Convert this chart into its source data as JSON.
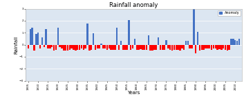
{
  "title": "Rainfall anomaly",
  "xlabel": "Years",
  "ylabel": "Rainfall",
  "ylim": [
    -3,
    3
  ],
  "yticks": [
    -3,
    -2,
    -1,
    0,
    1,
    2,
    3
  ],
  "legend_label": "Anomaly",
  "bar_color_pos": "#4472C4",
  "bar_color_neg": "#FF0000",
  "background_color": "#DCE6F1",
  "years": [
    1905,
    1906,
    1907,
    1908,
    1909,
    1910,
    1911,
    1912,
    1913,
    1914,
    1915,
    1916,
    1917,
    1918,
    1919,
    1920,
    1921,
    1922,
    1923,
    1924,
    1925,
    1926,
    1927,
    1928,
    1929,
    1930,
    1931,
    1932,
    1933,
    1934,
    1935,
    1936,
    1937,
    1938,
    1939,
    1940,
    1941,
    1942,
    1943,
    1944,
    1945,
    1946,
    1947,
    1948,
    1949,
    1950,
    1951,
    1952,
    1953,
    1954,
    1955,
    1956,
    1957,
    1958,
    1959,
    1960,
    1961,
    1962,
    1963,
    1964,
    1965,
    1966,
    1967,
    1968,
    1969,
    1970,
    1971,
    1972,
    1973,
    1974,
    1975,
    1976,
    1977,
    1978,
    1979,
    1980,
    1981,
    1982,
    1983,
    1984,
    1985,
    1986,
    1987,
    1988,
    1989,
    1990,
    1991,
    1992,
    1993,
    1994,
    1995,
    1996,
    1997,
    1998,
    1999,
    2000,
    2001,
    2002,
    2003,
    2004,
    2005,
    2006,
    2007,
    2008,
    2009,
    2010,
    2011,
    2012
  ],
  "values": [
    -0.3,
    1.3,
    1.4,
    -0.5,
    0.9,
    1.0,
    -0.3,
    0.6,
    -0.2,
    1.3,
    -0.3,
    -0.3,
    -0.2,
    -0.5,
    -0.4,
    1.4,
    -0.2,
    -0.3,
    -0.5,
    -0.5,
    -0.5,
    -0.4,
    -0.3,
    -0.4,
    -0.5,
    -0.4,
    -0.4,
    -0.3,
    -0.4,
    -0.3,
    1.75,
    -0.5,
    -0.4,
    0.95,
    -0.4,
    -0.3,
    -0.3,
    0.1,
    -0.3,
    -0.3,
    -0.4,
    -0.3,
    -0.4,
    -0.4,
    -0.4,
    1.4,
    -0.4,
    0.3,
    -0.4,
    -0.4,
    -0.4,
    2.05,
    -0.4,
    -0.3,
    0.5,
    -0.4,
    -0.4,
    -0.35,
    -0.4,
    -0.4,
    -0.4,
    0.8,
    -0.5,
    -0.5,
    -0.4,
    -0.4,
    0.6,
    -0.4,
    -0.4,
    -0.4,
    0.4,
    -0.3,
    -0.4,
    -0.5,
    -0.4,
    -0.4,
    -0.4,
    -0.5,
    -0.3,
    -0.4,
    0.35,
    0.35,
    -0.3,
    -0.3,
    2.95,
    -0.7,
    1.1,
    -0.5,
    -0.4,
    -0.4,
    -0.3,
    -0.3,
    -0.3,
    -0.4,
    -0.3,
    -0.3,
    -0.4,
    -0.35,
    -0.4,
    -0.3,
    -0.4,
    -0.5,
    -0.4,
    0.5,
    0.5,
    0.4,
    0.3,
    0.5
  ],
  "tick_every": 5,
  "title_fontsize": 6,
  "axis_label_fontsize": 5,
  "tick_fontsize": 3,
  "legend_fontsize": 3.5
}
